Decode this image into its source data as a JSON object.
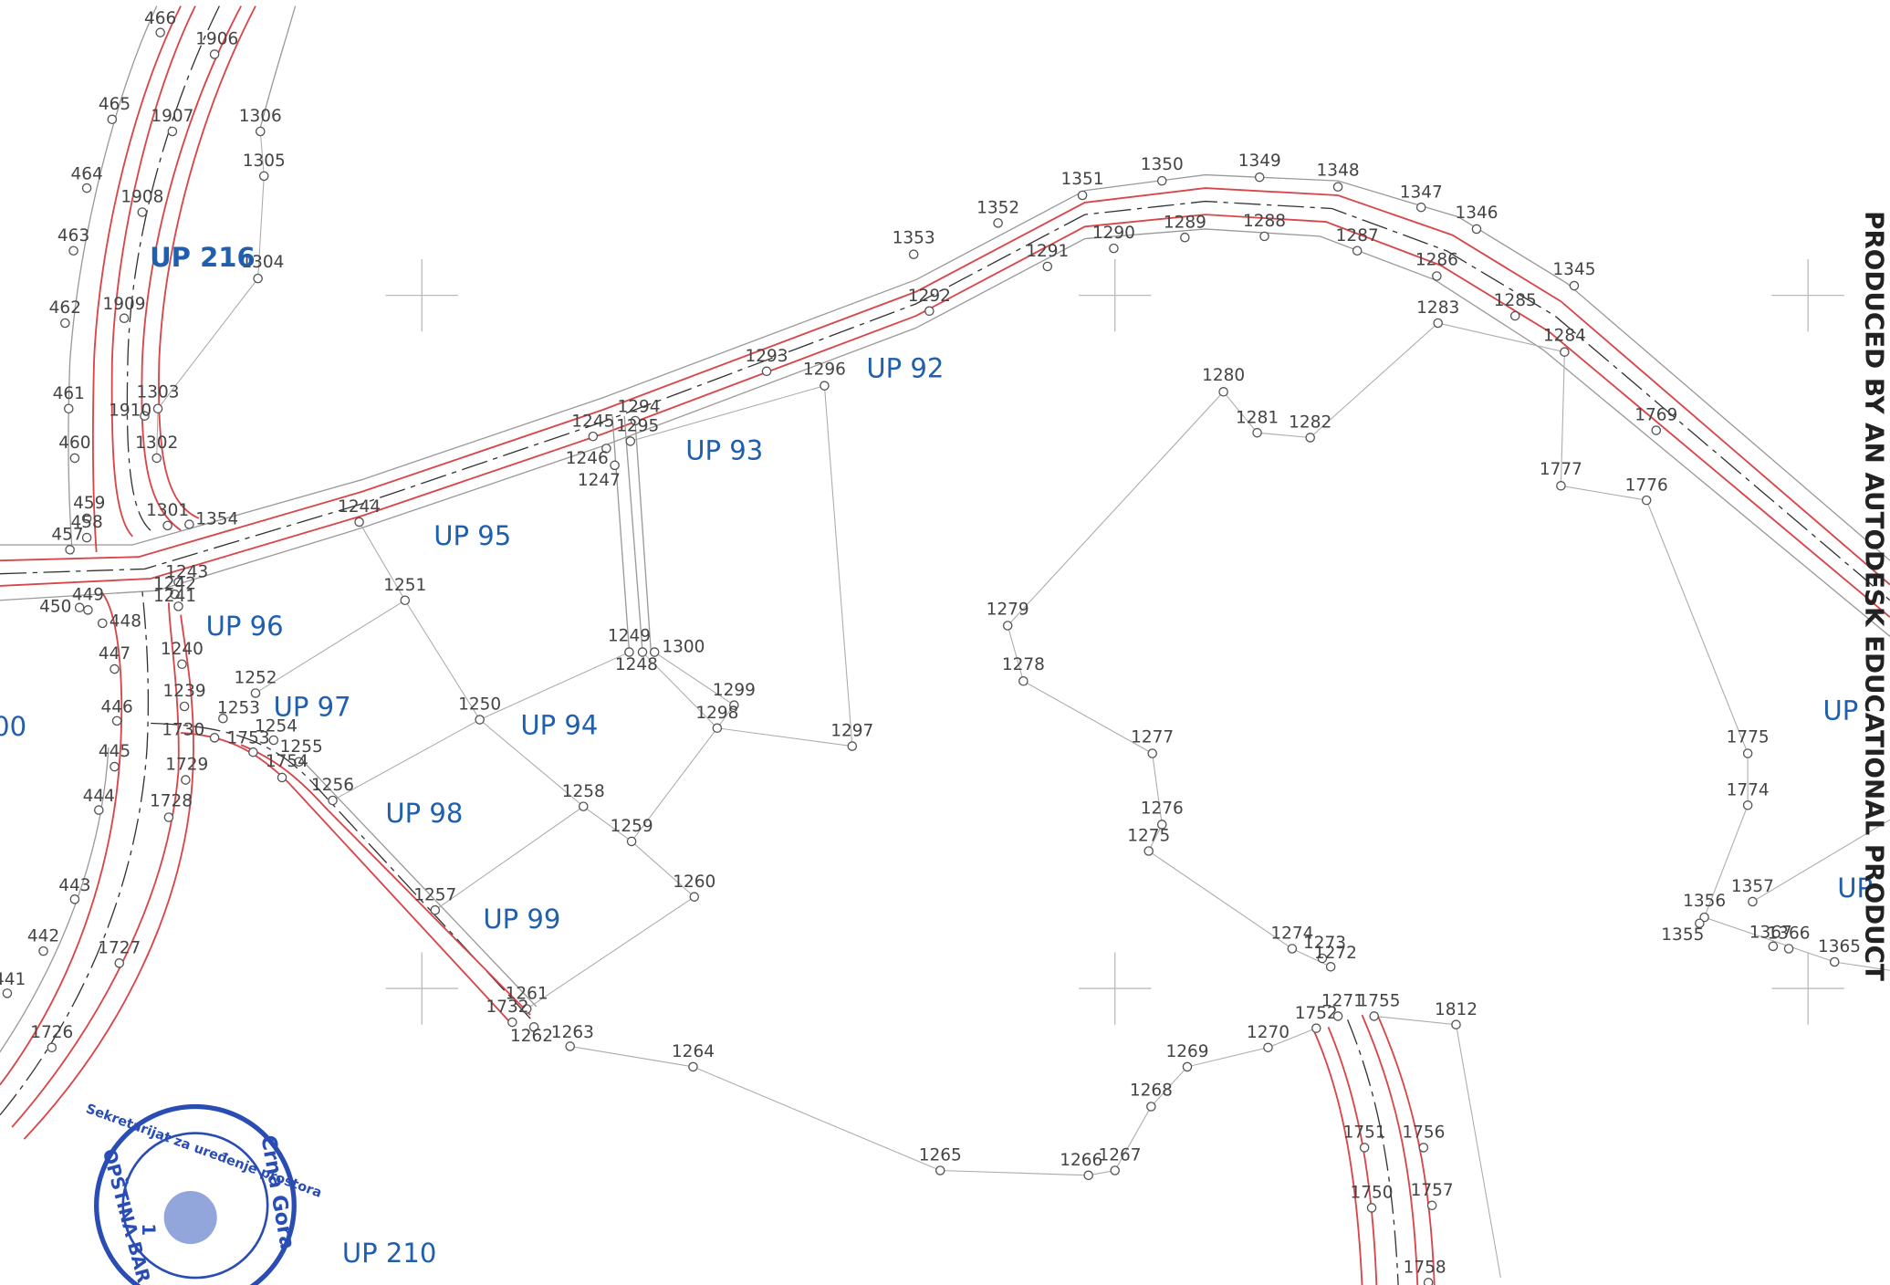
{
  "points": [
    "466",
    "1906",
    "465",
    "1907",
    "1306",
    "1305",
    "464",
    "1908",
    "463",
    "1304",
    "462",
    "1909",
    "461",
    "1303",
    "1910",
    "460",
    "1302",
    "459",
    "458",
    "457",
    "1301",
    "1354",
    "1244",
    "1243",
    "1242",
    "1241",
    "450",
    "449",
    "448",
    "447",
    "1240",
    "1239",
    "1252",
    "1253",
    "1730",
    "1254",
    "1753",
    "1255",
    "1754",
    "446",
    "445",
    "1729",
    "1256",
    "444",
    "1728",
    "443",
    "442",
    "1727",
    "441",
    "1726",
    "1251",
    "1250",
    "1258",
    "1259",
    "1257",
    "1260",
    "1261",
    "1732",
    "1262",
    "1263",
    "1264",
    "1265",
    "1266",
    "1267",
    "1268",
    "1269",
    "1270",
    "1752",
    "1271",
    "1755",
    "1812",
    "1274",
    "1273",
    "1272",
    "1277",
    "1276",
    "1275",
    "1278",
    "1279",
    "1280",
    "1281",
    "1282",
    "1283",
    "1284",
    "1285",
    "1286",
    "1287",
    "1288",
    "1289",
    "1290",
    "1291",
    "1292",
    "1293",
    "1296",
    "1294",
    "1295",
    "1245",
    "1246",
    "1247",
    "1249",
    "1248",
    "1300",
    "1299",
    "1298",
    "1297",
    "1353",
    "1352",
    "1351",
    "1350",
    "1349",
    "1348",
    "1347",
    "1346",
    "1345",
    "1769",
    "1777",
    "1776",
    "1775",
    "1774",
    "1357",
    "1356",
    "1355",
    "1367",
    "1366",
    "1365",
    "1751",
    "1756",
    "1750",
    "1757",
    "1758"
  ],
  "parcels": [
    "UP 216",
    "UP 92",
    "UP 93",
    "UP 95",
    "UP 96",
    "UP 97",
    "UP 94",
    "UP 98",
    "UP 99",
    "UP 210",
    "UP",
    "UP",
    "00"
  ],
  "watermark": "PRODUCED BY AN AUTODESK EDUCATIONAL PRODUCT",
  "stamp": {
    "top": "Sekretarijat za uređenje prostora",
    "right": "Crna Gora",
    "left": "OPŠTINA BAR",
    "number": "1"
  }
}
